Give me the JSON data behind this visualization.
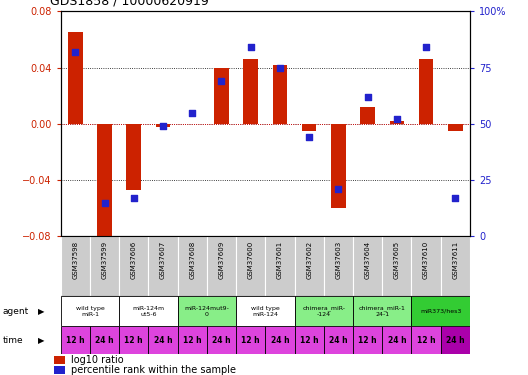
{
  "title": "GDS1858 / 10000620919",
  "samples": [
    "GSM37598",
    "GSM37599",
    "GSM37606",
    "GSM37607",
    "GSM37608",
    "GSM37609",
    "GSM37600",
    "GSM37601",
    "GSM37602",
    "GSM37603",
    "GSM37604",
    "GSM37605",
    "GSM37610",
    "GSM37611"
  ],
  "log10_ratio": [
    0.065,
    -0.08,
    -0.047,
    -0.002,
    0.0,
    0.04,
    0.046,
    0.042,
    -0.005,
    -0.06,
    0.012,
    0.002,
    0.046,
    -0.005
  ],
  "percentile_rank": [
    82,
    15,
    17,
    49,
    55,
    69,
    84,
    75,
    44,
    21,
    62,
    52,
    84,
    17
  ],
  "ylim_left": [
    -0.08,
    0.08
  ],
  "ylim_right": [
    0,
    100
  ],
  "yticks_left": [
    -0.08,
    -0.04,
    0,
    0.04,
    0.08
  ],
  "yticks_right": [
    0,
    25,
    50,
    75,
    100
  ],
  "ytick_labels_right": [
    "0",
    "25",
    "50",
    "75",
    "100%"
  ],
  "bar_color": "#cc2200",
  "dot_color": "#2222cc",
  "agent_groups": [
    {
      "label": "wild type\nmiR-1",
      "cols": [
        0,
        1
      ],
      "color": "#ffffff"
    },
    {
      "label": "miR-124m\nut5-6",
      "cols": [
        2,
        3
      ],
      "color": "#ffffff"
    },
    {
      "label": "miR-124mut9-\n0",
      "cols": [
        4,
        5
      ],
      "color": "#88ee88"
    },
    {
      "label": "wild type\nmiR-124",
      "cols": [
        6,
        7
      ],
      "color": "#ffffff"
    },
    {
      "label": "chimera_miR-\n-124",
      "cols": [
        8,
        9
      ],
      "color": "#88ee88"
    },
    {
      "label": "chimera_miR-1\n24-1",
      "cols": [
        10,
        11
      ],
      "color": "#88ee88"
    },
    {
      "label": "miR373/hes3",
      "cols": [
        12,
        13
      ],
      "color": "#33cc33"
    }
  ],
  "time_labels": [
    "12 h",
    "24 h",
    "12 h",
    "24 h",
    "12 h",
    "24 h",
    "12 h",
    "24 h",
    "12 h",
    "24 h",
    "12 h",
    "24 h",
    "12 h",
    "24 h"
  ],
  "time_color": "#dd44dd",
  "time_color_last": "#aa00aa"
}
